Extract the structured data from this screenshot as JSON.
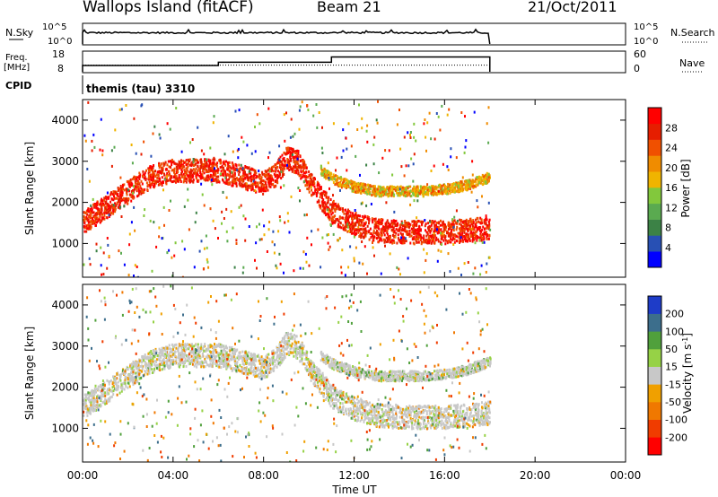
{
  "header": {
    "station": "Wallops Island (fitACF)",
    "beam": "Beam 21",
    "date": "21/Oct/2011"
  },
  "summary": {
    "nsky_label": "N.Sky",
    "nsearch_label": "N.Search",
    "freq_label": "Freq.",
    "freq_unit": "[MHz]",
    "nave_label": "Nave",
    "cpid_label": "CPID",
    "cpid_value": "themis (tau) 3310",
    "noise_ticks": [
      "10^5",
      "10^0"
    ],
    "freq_ticks": [
      "18",
      "8"
    ],
    "nave_ticks": [
      "60",
      "0"
    ]
  },
  "colors": {
    "power": [
      "#0000ff",
      "#2850b4",
      "#3c8246",
      "#5aaa50",
      "#82c83c",
      "#f0b400",
      "#f08c00",
      "#f05000",
      "#e61e00",
      "#ff0000"
    ],
    "velocity": [
      "#ff0000",
      "#f03c00",
      "#f07800",
      "#f0a000",
      "#c8c8c8",
      "#96d246",
      "#50a03c",
      "#3c6e8c",
      "#1e3cc8"
    ],
    "ground_scatter": "#c8c8c8"
  },
  "chart_data": [
    {
      "type": "line",
      "title": "N.Sky",
      "x_range": [
        "00:00",
        "18:00"
      ],
      "approx_log10_noise": 3.2
    },
    {
      "type": "line",
      "title": "Freq. / Nave",
      "series": [
        {
          "name": "Freq.",
          "x": [
            "00:00",
            "06:00",
            "06:00",
            "11:00",
            "11:00",
            "18:00"
          ],
          "values": [
            11.2,
            11.2,
            12.8,
            12.8,
            15.5,
            15.5
          ]
        },
        {
          "name": "Nave",
          "x": [
            "00:00",
            "18:00"
          ],
          "values": [
            20,
            20
          ]
        }
      ]
    },
    {
      "type": "heatmap",
      "panel": "power",
      "xlabel": "",
      "ylabel": "Slant Range [km]",
      "yticks": [
        "1000",
        "2000",
        "3000",
        "4000"
      ],
      "ylim": [
        180,
        4500
      ],
      "xlim": [
        0,
        24
      ],
      "colorbar_label": "Power [dB]",
      "colorbar_ticks": [
        "4",
        "8",
        "12",
        "16",
        "20",
        "24",
        "28"
      ],
      "scatter_bands": [
        {
          "x": [
            0,
            1,
            2,
            3,
            4,
            5,
            6,
            7,
            8,
            8.5,
            9,
            9.5,
            10,
            11,
            12,
            13,
            14,
            15,
            16,
            17,
            18
          ],
          "range_km": [
            1550,
            1900,
            2300,
            2650,
            2800,
            2800,
            2800,
            2650,
            2500,
            2700,
            3100,
            3000,
            2500,
            1800,
            1500,
            1350,
            1300,
            1300,
            1300,
            1350,
            1400
          ],
          "power_db": 26
        },
        {
          "x": [
            10.5,
            11,
            12,
            13,
            14,
            15,
            16,
            17,
            18
          ],
          "range_km": [
            2800,
            2600,
            2400,
            2300,
            2300,
            2300,
            2350,
            2450,
            2650
          ],
          "power_db": 18
        }
      ]
    },
    {
      "type": "heatmap",
      "panel": "velocity",
      "xlabel": "Time UT",
      "ylabel": "Slant Range [km]",
      "yticks": [
        "1000",
        "2000",
        "3000",
        "4000"
      ],
      "ylim": [
        180,
        4500
      ],
      "xlim": [
        0,
        24
      ],
      "xticks": [
        "00:00",
        "04:00",
        "08:00",
        "12:00",
        "16:00",
        "20:00",
        "00:00"
      ],
      "colorbar_label": "Velocity [m s^-1]",
      "colorbar_ticks": [
        "200",
        "100",
        "50",
        "15",
        "-15",
        "-50",
        "-100",
        "-200"
      ],
      "scatter_bands": [
        {
          "x": [
            0,
            1,
            2,
            3,
            4,
            5,
            6,
            7,
            8,
            8.5,
            9,
            9.5,
            10,
            11,
            12,
            13,
            14,
            15,
            16,
            17,
            18
          ],
          "range_km": [
            1550,
            1900,
            2300,
            2650,
            2800,
            2800,
            2800,
            2650,
            2500,
            2700,
            3100,
            3000,
            2500,
            1800,
            1500,
            1350,
            1300,
            1300,
            1300,
            1350,
            1400
          ],
          "velocity_ms": 0
        },
        {
          "x": [
            10.5,
            11,
            12,
            13,
            14,
            15,
            16,
            17,
            18
          ],
          "range_km": [
            2800,
            2600,
            2400,
            2300,
            2300,
            2300,
            2350,
            2450,
            2650
          ],
          "velocity_ms": 20
        }
      ]
    }
  ]
}
